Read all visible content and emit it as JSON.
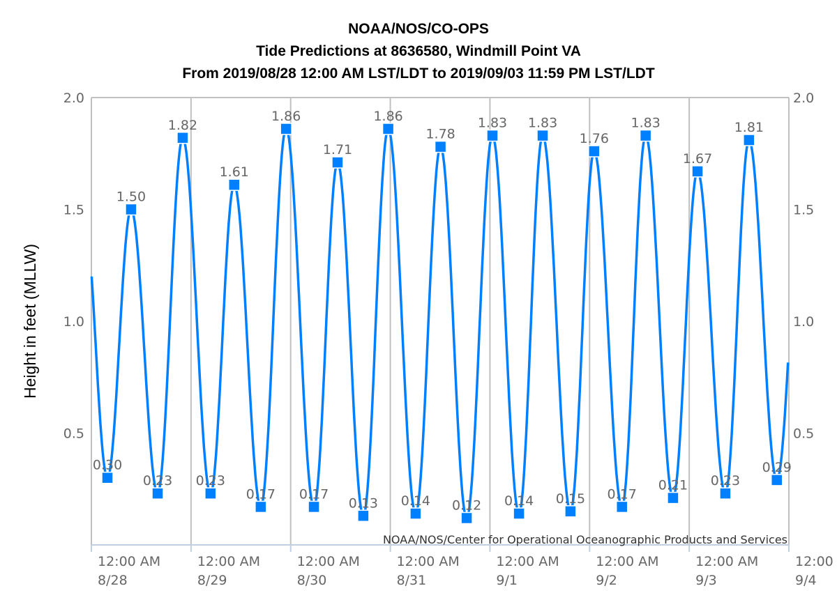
{
  "chart_data": {
    "type": "line",
    "title": [
      "NOAA/NOS/CO-OPS",
      "Tide Predictions at 8636580, Windmill Point VA",
      "From 2019/08/28 12:00 AM LST/LDT to 2019/09/03 11:59 PM LST/LDT"
    ],
    "ylabel": "Height in feet (MLLW)",
    "credit": "NOAA/NOS/Center for Operational Oceanographic Products and Services",
    "xlim": [
      "2019-08-28 00:00",
      "2019-09-04 00:00"
    ],
    "ylim": [
      0,
      2.0
    ],
    "yticks": [
      "0.5",
      "1.0",
      "1.5",
      "2.0"
    ],
    "xticks": [
      {
        "time": "12:00 AM",
        "date": "8/28"
      },
      {
        "time": "12:00 AM",
        "date": "8/29"
      },
      {
        "time": "12:00 AM",
        "date": "8/30"
      },
      {
        "time": "12:00 AM",
        "date": "8/31"
      },
      {
        "time": "12:00 AM",
        "date": "9/1"
      },
      {
        "time": "12:00 AM",
        "date": "9/2"
      },
      {
        "time": "12:00 AM",
        "date": "9/3"
      },
      {
        "time": "12:00",
        "date": "9/4"
      }
    ],
    "vertical_grid": true,
    "line_color": "#0080ff",
    "points": [
      {
        "t": "2019-08-28 03:52",
        "v": 0.3
      },
      {
        "t": "2019-08-28 09:34",
        "v": 1.5
      },
      {
        "t": "2019-08-28 15:58",
        "v": 0.23
      },
      {
        "t": "2019-08-28 22:00",
        "v": 1.82
      },
      {
        "t": "2019-08-29 04:42",
        "v": 0.23
      },
      {
        "t": "2019-08-29 10:24",
        "v": 1.61
      },
      {
        "t": "2019-08-29 16:48",
        "v": 0.17
      },
      {
        "t": "2019-08-29 22:54",
        "v": 1.86
      },
      {
        "t": "2019-08-30 05:36",
        "v": 0.17
      },
      {
        "t": "2019-08-30 11:18",
        "v": 1.71
      },
      {
        "t": "2019-08-30 17:30",
        "v": 0.13
      },
      {
        "t": "2019-08-30 23:30",
        "v": 1.86
      },
      {
        "t": "2019-08-31 06:06",
        "v": 0.14
      },
      {
        "t": "2019-08-31 12:06",
        "v": 1.78
      },
      {
        "t": "2019-08-31 18:24",
        "v": 0.12
      },
      {
        "t": "2019-09-01 00:36",
        "v": 1.83
      },
      {
        "t": "2019-09-01 07:00",
        "v": 0.14
      },
      {
        "t": "2019-09-01 12:42",
        "v": 1.83
      },
      {
        "t": "2019-09-01 19:24",
        "v": 0.15
      },
      {
        "t": "2019-09-02 01:06",
        "v": 1.76
      },
      {
        "t": "2019-09-02 07:48",
        "v": 0.17
      },
      {
        "t": "2019-09-02 13:30",
        "v": 1.83
      },
      {
        "t": "2019-09-02 20:06",
        "v": 0.21
      },
      {
        "t": "2019-09-03 02:00",
        "v": 1.67
      },
      {
        "t": "2019-09-03 08:42",
        "v": 0.23
      },
      {
        "t": "2019-09-03 14:24",
        "v": 1.81
      },
      {
        "t": "2019-09-03 21:06",
        "v": 0.29
      }
    ]
  }
}
